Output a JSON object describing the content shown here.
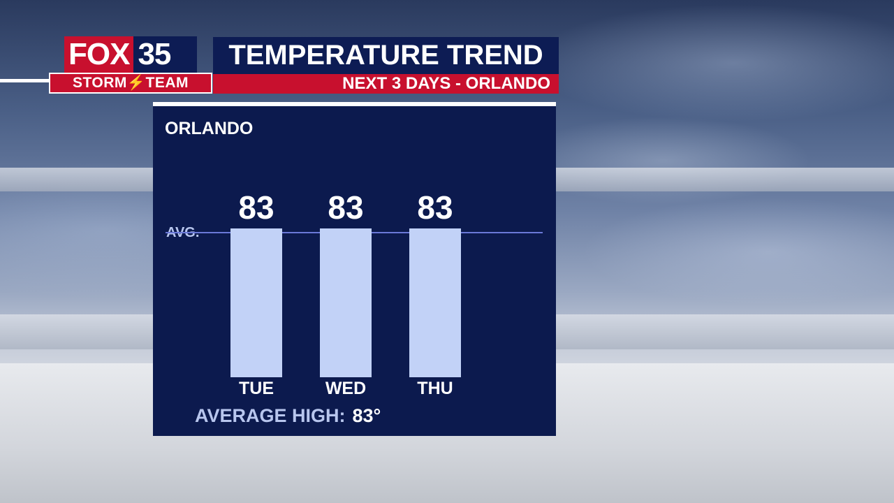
{
  "header": {
    "logo_fox": "FOX",
    "logo_number": "35",
    "storm_team": "STORM⚡TEAM",
    "title": "TEMPERATURE TREND",
    "subtitle": "NEXT 3 DAYS - ORLANDO"
  },
  "panel": {
    "location_label": "ORLANDO",
    "avg_label": "AVG.",
    "average_high_label": "AVERAGE HIGH:",
    "average_high_value": "83°"
  },
  "colors": {
    "brand_navy": "#0d1c54",
    "brand_red": "#c8102e",
    "bar_fill": "#c2d2f7",
    "avg_line": "#6a78d8"
  },
  "chart_data": {
    "type": "bar",
    "title": "TEMPERATURE TREND",
    "subtitle": "NEXT 3 DAYS - ORLANDO",
    "categories": [
      "TUE",
      "WED",
      "THU"
    ],
    "values": [
      83,
      83,
      83
    ],
    "value_labels": [
      "83",
      "83",
      "83"
    ],
    "average": 83,
    "average_label": "AVG.",
    "unit": "°F",
    "ylim": [
      60,
      85
    ],
    "grid": false,
    "legend": "none"
  }
}
